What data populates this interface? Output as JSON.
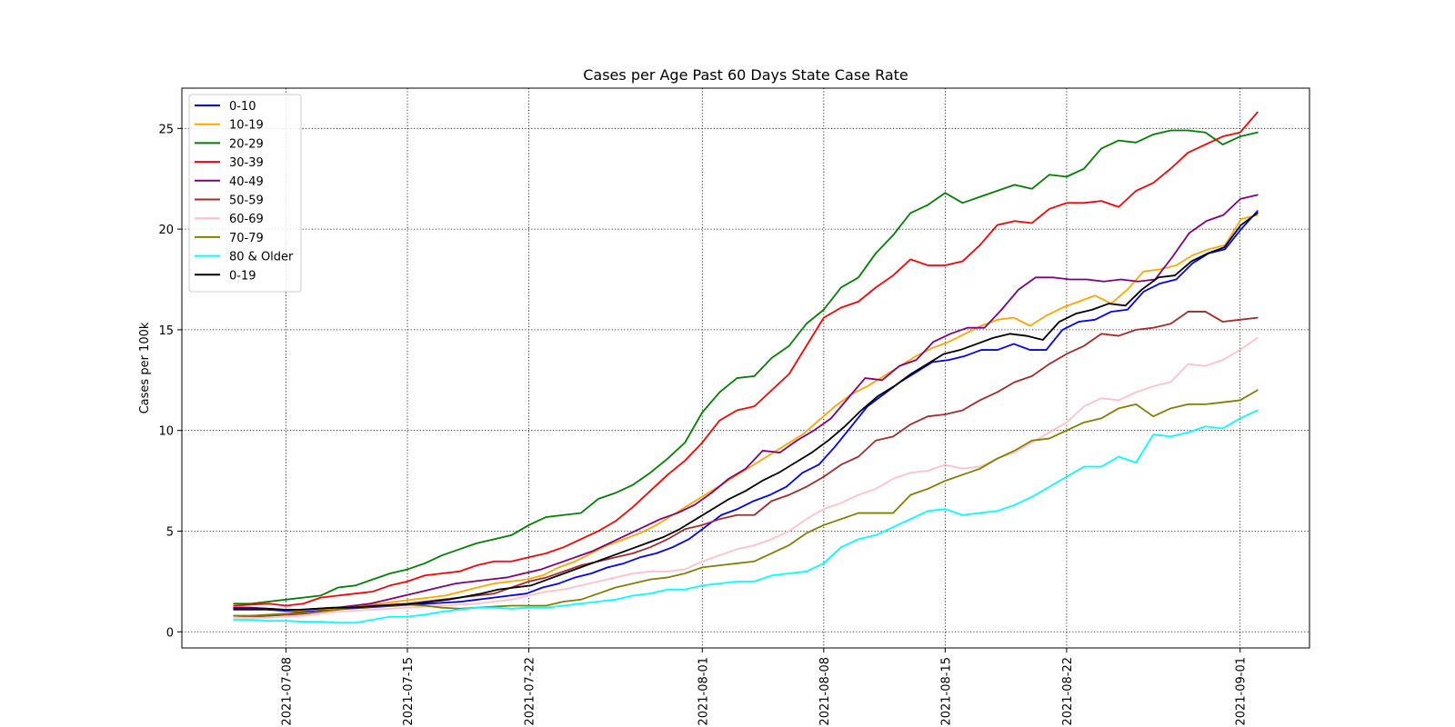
{
  "chart_data": {
    "type": "line",
    "title": "Cases per Age Past  60 Days State Case Rate",
    "xlabel": "",
    "ylabel": "Cases per 100k",
    "x_start": "2021-07-05",
    "x_end": "2021-09-02",
    "xlim": [
      "2021-07-02",
      "2021-09-05"
    ],
    "ylim": [
      -0.8,
      27
    ],
    "x_ticks": [
      "2021-07-08",
      "2021-07-15",
      "2021-07-22",
      "2021-08-01",
      "2021-08-08",
      "2021-08-15",
      "2021-08-22",
      "2021-09-01"
    ],
    "y_ticks": [
      0,
      5,
      10,
      15,
      20,
      25
    ],
    "grid": true,
    "legend_position": "upper-left",
    "series": [
      {
        "name": "0-10",
        "color": "#0000ff",
        "values": [
          1.1,
          1.1,
          1.1,
          1.05,
          1.0,
          1.05,
          1.1,
          1.15,
          1.2,
          1.25,
          1.3,
          1.35,
          1.4,
          1.45,
          1.5,
          1.6,
          1.7,
          1.8,
          1.9,
          2.2,
          2.4,
          2.7,
          2.9,
          3.2,
          3.4,
          3.7,
          3.9,
          4.2,
          4.6,
          5.2,
          5.8,
          6.1,
          6.5,
          6.8,
          7.2,
          7.9,
          8.3,
          9.2,
          10.2,
          11.2,
          11.8,
          12.4,
          12.9,
          13.4,
          13.5,
          13.7,
          14.0,
          14.0,
          14.3,
          14.0,
          14.0,
          15.0,
          15.4,
          15.5,
          15.9,
          16.0,
          16.9,
          17.3,
          17.5,
          18.3,
          18.8,
          19.0,
          20.0,
          20.9
        ]
      },
      {
        "name": "10-19",
        "color": "#ffa500",
        "values": [
          1.2,
          1.2,
          1.15,
          1.1,
          1.05,
          1.1,
          1.15,
          1.2,
          1.3,
          1.4,
          1.5,
          1.6,
          1.7,
          1.8,
          2.0,
          2.2,
          2.4,
          2.5,
          2.6,
          2.8,
          3.2,
          3.5,
          3.9,
          4.3,
          4.6,
          4.9,
          5.3,
          5.8,
          6.3,
          6.8,
          7.3,
          7.8,
          8.3,
          8.8,
          9.3,
          9.8,
          10.5,
          11.2,
          11.8,
          12.2,
          12.7,
          13.2,
          13.7,
          14.1,
          14.4,
          14.8,
          15.2,
          15.5,
          15.6,
          15.2,
          15.7,
          16.1,
          16.4,
          16.7,
          16.3,
          17.0,
          17.9,
          18.0,
          18.2,
          18.7,
          19.0,
          19.2,
          20.5,
          20.7
        ]
      },
      {
        "name": "20-29",
        "color": "#008000",
        "values": [
          1.4,
          1.4,
          1.5,
          1.6,
          1.7,
          1.8,
          2.2,
          2.3,
          2.6,
          2.9,
          3.1,
          3.4,
          3.8,
          4.1,
          4.4,
          4.6,
          4.8,
          5.3,
          5.7,
          5.8,
          5.9,
          6.6,
          6.9,
          7.3,
          7.9,
          8.6,
          9.4,
          10.9,
          11.9,
          12.6,
          12.7,
          13.6,
          14.2,
          15.3,
          16.0,
          17.1,
          17.6,
          18.8,
          19.7,
          20.8,
          21.2,
          21.8,
          21.3,
          21.6,
          21.9,
          22.2,
          22.0,
          22.7,
          22.6,
          23.0,
          24.0,
          24.4,
          24.3,
          24.7,
          24.9,
          24.9,
          24.8,
          24.2,
          24.6,
          24.8
        ]
      },
      {
        "name": "30-39",
        "color": "#ff0000",
        "values": [
          1.3,
          1.35,
          1.4,
          1.3,
          1.4,
          1.7,
          1.8,
          1.9,
          2.0,
          2.3,
          2.5,
          2.8,
          2.9,
          3.0,
          3.3,
          3.5,
          3.5,
          3.7,
          3.9,
          4.2,
          4.6,
          5.0,
          5.5,
          6.2,
          7.0,
          7.8,
          8.5,
          9.4,
          10.5,
          11.0,
          11.2,
          12.0,
          12.8,
          14.2,
          15.6,
          16.1,
          16.4,
          17.1,
          17.7,
          18.5,
          18.2,
          18.2,
          18.4,
          19.2,
          20.2,
          20.4,
          20.3,
          21.0,
          21.3,
          21.3,
          21.4,
          21.1,
          21.9,
          22.3,
          23.0,
          23.8,
          24.2,
          24.6,
          24.8,
          25.8
        ]
      },
      {
        "name": "40-49",
        "color": "#800080",
        "values": [
          1.2,
          1.2,
          1.15,
          1.1,
          1.1,
          1.15,
          1.2,
          1.3,
          1.4,
          1.6,
          1.8,
          2.0,
          2.2,
          2.4,
          2.5,
          2.6,
          2.7,
          2.9,
          3.1,
          3.4,
          3.7,
          4.0,
          4.4,
          4.8,
          5.2,
          5.6,
          5.9,
          6.3,
          6.9,
          7.6,
          8.1,
          9.0,
          8.9,
          9.5,
          10.0,
          10.6,
          11.6,
          12.6,
          12.5,
          13.2,
          13.5,
          14.4,
          14.8,
          15.1,
          15.1,
          16.0,
          17.0,
          17.6,
          17.6,
          17.5,
          17.5,
          17.4,
          17.5,
          17.4,
          17.5,
          18.6,
          19.8,
          20.4,
          20.7,
          21.5,
          21.7
        ]
      },
      {
        "name": "50-59",
        "color": "#a52a2a",
        "values": [
          0.8,
          0.75,
          0.8,
          0.85,
          0.9,
          1.0,
          1.1,
          1.2,
          1.3,
          1.35,
          1.4,
          1.5,
          1.6,
          1.7,
          1.8,
          1.9,
          2.2,
          2.5,
          2.7,
          3.0,
          3.3,
          3.5,
          3.7,
          3.9,
          4.2,
          4.6,
          5.1,
          5.3,
          5.6,
          5.8,
          5.8,
          6.5,
          6.8,
          7.2,
          7.7,
          8.3,
          8.7,
          9.5,
          9.7,
          10.3,
          10.7,
          10.8,
          11.0,
          11.5,
          11.9,
          12.4,
          12.7,
          13.3,
          13.8,
          14.2,
          14.8,
          14.7,
          15.0,
          15.1,
          15.3,
          15.9,
          15.9,
          15.4,
          15.5,
          15.6
        ]
      },
      {
        "name": "60-69",
        "color": "#ffc0cb",
        "values": [
          0.7,
          0.7,
          0.7,
          0.75,
          0.8,
          0.9,
          1.0,
          1.05,
          1.1,
          1.15,
          1.2,
          1.25,
          1.3,
          1.35,
          1.4,
          1.5,
          1.6,
          1.8,
          2.0,
          2.1,
          2.3,
          2.5,
          2.7,
          2.9,
          3.0,
          3.0,
          3.1,
          3.5,
          3.8,
          4.1,
          4.3,
          4.6,
          5.0,
          5.6,
          6.1,
          6.4,
          6.8,
          7.1,
          7.6,
          7.9,
          8.0,
          8.3,
          8.1,
          8.2,
          8.6,
          8.9,
          9.4,
          9.9,
          10.4,
          11.2,
          11.6,
          11.5,
          11.9,
          12.2,
          12.4,
          13.3,
          13.2,
          13.5,
          14.0,
          14.6
        ]
      },
      {
        "name": "70-79",
        "color": "#808000",
        "values": [
          0.8,
          0.8,
          0.85,
          0.9,
          0.95,
          1.0,
          1.1,
          1.2,
          1.25,
          1.3,
          1.35,
          1.3,
          1.2,
          1.15,
          1.2,
          1.25,
          1.3,
          1.3,
          1.3,
          1.5,
          1.6,
          1.9,
          2.2,
          2.4,
          2.6,
          2.7,
          2.9,
          3.2,
          3.3,
          3.4,
          3.5,
          3.9,
          4.3,
          4.9,
          5.3,
          5.6,
          5.9,
          5.9,
          5.9,
          6.8,
          7.1,
          7.5,
          7.8,
          8.1,
          8.6,
          9.0,
          9.5,
          9.6,
          10.0,
          10.4,
          10.6,
          11.1,
          11.3,
          10.7,
          11.1,
          11.3,
          11.3,
          11.4,
          11.5,
          12.0
        ]
      },
      {
        "name": "80 & Older",
        "color": "#00ffff",
        "values": [
          0.6,
          0.6,
          0.55,
          0.55,
          0.5,
          0.5,
          0.45,
          0.45,
          0.6,
          0.75,
          0.75,
          0.85,
          1.0,
          1.1,
          1.2,
          1.2,
          1.15,
          1.2,
          1.2,
          1.3,
          1.4,
          1.5,
          1.6,
          1.8,
          1.9,
          2.1,
          2.1,
          2.3,
          2.4,
          2.5,
          2.5,
          2.8,
          2.9,
          3.0,
          3.4,
          4.2,
          4.6,
          4.8,
          5.2,
          5.6,
          6.0,
          6.1,
          5.8,
          5.9,
          6.0,
          6.3,
          6.7,
          7.2,
          7.7,
          8.2,
          8.2,
          8.7,
          8.4,
          9.8,
          9.7,
          9.9,
          10.2,
          10.1,
          10.6,
          11.0
        ]
      },
      {
        "name": "0-19",
        "color": "#000000",
        "values": [
          1.15,
          1.15,
          1.15,
          1.1,
          1.1,
          1.15,
          1.2,
          1.2,
          1.25,
          1.3,
          1.35,
          1.4,
          1.5,
          1.6,
          1.75,
          1.9,
          2.1,
          2.2,
          2.3,
          2.6,
          2.9,
          3.2,
          3.5,
          3.8,
          4.1,
          4.4,
          4.7,
          5.1,
          5.6,
          6.1,
          6.6,
          7.0,
          7.5,
          7.9,
          8.4,
          8.9,
          9.5,
          10.2,
          11.0,
          11.7,
          12.2,
          12.8,
          13.3,
          13.8,
          14.0,
          14.3,
          14.6,
          14.8,
          14.7,
          14.5,
          15.4,
          15.8,
          16.0,
          16.3,
          16.2,
          17.0,
          17.6,
          17.7,
          18.4,
          18.8,
          19.1,
          20.2,
          20.8
        ]
      }
    ]
  }
}
